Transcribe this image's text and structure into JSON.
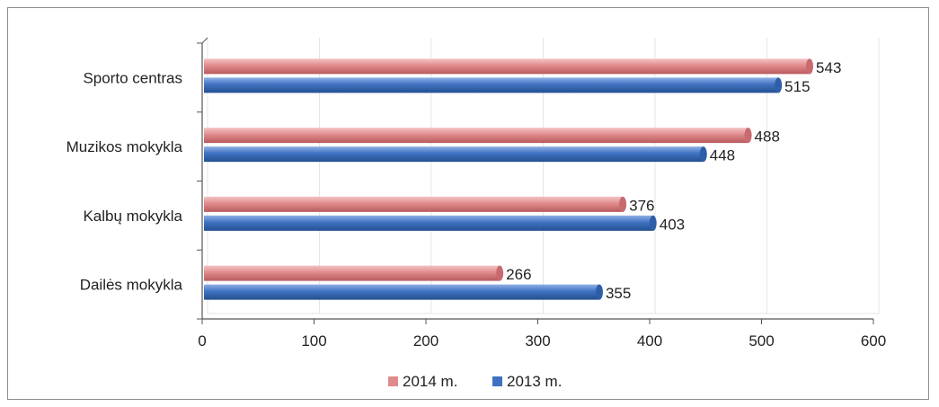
{
  "chart_data": {
    "type": "bar",
    "orientation": "horizontal",
    "categories": [
      "Sporto centras",
      "Muzikos mokykla",
      "Kalbų mokykla",
      "Dailės mokykla"
    ],
    "series": [
      {
        "name": "2014 m.",
        "color": "#e08a8c",
        "values": [
          543,
          488,
          376,
          266
        ]
      },
      {
        "name": "2013 m.",
        "color": "#3f72c2",
        "values": [
          515,
          448,
          403,
          355
        ]
      }
    ],
    "xlim": [
      0,
      600
    ],
    "xticks": [
      "0",
      "100",
      "200",
      "300",
      "400",
      "500",
      "600"
    ],
    "grid": true,
    "legend_position": "bottom",
    "title": "",
    "xlabel": "",
    "ylabel": ""
  }
}
